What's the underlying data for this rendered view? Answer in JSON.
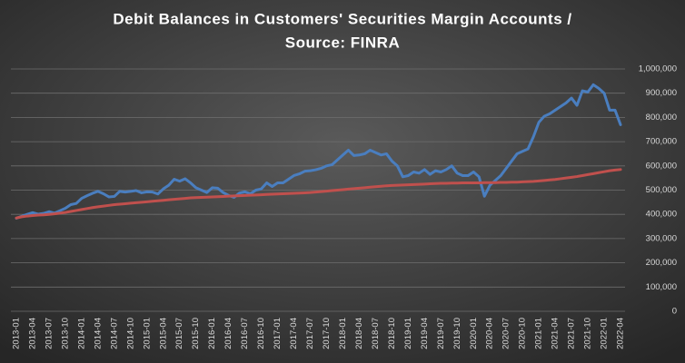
{
  "chart_data": {
    "type": "line",
    "title": [
      "Debit Balances in Customers' Securities Margin Accounts /",
      "Source: FINRA"
    ],
    "categories": [
      "2013-01",
      null,
      null,
      "2013-04",
      null,
      null,
      "2013-07",
      null,
      null,
      "2013-10",
      null,
      null,
      "2014-01",
      null,
      null,
      "2014-04",
      null,
      null,
      "2014-07",
      null,
      null,
      "2014-10",
      null,
      null,
      "2015-01",
      null,
      null,
      "2015-04",
      null,
      null,
      "2015-07",
      null,
      null,
      "2015-10",
      null,
      null,
      "2016-01",
      null,
      null,
      "2016-04",
      null,
      null,
      "2016-07",
      null,
      null,
      "2016-10",
      null,
      null,
      "2017-01",
      null,
      null,
      "2017-04",
      null,
      null,
      "2017-07",
      null,
      null,
      "2017-10",
      null,
      null,
      "2018-01",
      null,
      null,
      "2018-04",
      null,
      null,
      "2018-07",
      null,
      null,
      "2018-10",
      null,
      null,
      "2019-01",
      null,
      null,
      "2019-04",
      null,
      null,
      "2019-07",
      null,
      null,
      "2019-10",
      null,
      null,
      "2020-01",
      null,
      null,
      "2020-04",
      null,
      null,
      "2020-07",
      null,
      null,
      "2020-10",
      null,
      null,
      "2021-01",
      null,
      null,
      "2021-04",
      null,
      null,
      "2021-07",
      null,
      null,
      "2021-10",
      null,
      null,
      "2022-01",
      null,
      null,
      "2022-04"
    ],
    "series": [
      {
        "color": "#4a7ebf",
        "values": [
          384000,
          392000,
          400000,
          407000,
          401000,
          404000,
          411000,
          405000,
          415000,
          425000,
          440000,
          445000,
          466000,
          477000,
          487000,
          495000,
          485000,
          472000,
          474000,
          495000,
          492000,
          495000,
          498000,
          489000,
          493000,
          492000,
          484000,
          505000,
          520000,
          545000,
          537000,
          547000,
          530000,
          510000,
          500000,
          490000,
          510000,
          508000,
          490000,
          478000,
          470000,
          488000,
          493000,
          485000,
          500000,
          505000,
          530000,
          515000,
          530000,
          530000,
          545000,
          560000,
          567000,
          578000,
          580000,
          584000,
          590000,
          600000,
          605000,
          625000,
          645000,
          665000,
          643000,
          645000,
          650000,
          665000,
          655000,
          645000,
          650000,
          620000,
          600000,
          555000,
          560000,
          575000,
          570000,
          585000,
          565000,
          580000,
          575000,
          585000,
          600000,
          570000,
          560000,
          560000,
          575000,
          555000,
          475000,
          520000,
          540000,
          560000,
          590000,
          620000,
          650000,
          660000,
          670000,
          720000,
          780000,
          805000,
          815000,
          830000,
          845000,
          860000,
          880000,
          850000,
          910000,
          905000,
          935000,
          920000,
          900000,
          830000,
          830000,
          770000
        ]
      },
      {
        "color": "#c0504d",
        "values": [
          385000,
          390000,
          393000,
          395000,
          397000,
          398000,
          400000,
          402000,
          405000,
          408000,
          412000,
          416000,
          420000,
          424000,
          428000,
          431000,
          434000,
          437000,
          440000,
          442000,
          444000,
          446000,
          448000,
          450000,
          452000,
          454000,
          456000,
          458000,
          460000,
          462000,
          464000,
          466000,
          468000,
          469000,
          470000,
          471000,
          472000,
          473000,
          474000,
          475000,
          476000,
          477000,
          478000,
          479000,
          480000,
          481000,
          482000,
          483000,
          484000,
          485000,
          486000,
          487000,
          488000,
          489000,
          490000,
          492000,
          494000,
          496000,
          498000,
          500000,
          502000,
          504000,
          506000,
          508000,
          510000,
          512000,
          514000,
          516000,
          518000,
          519000,
          520000,
          521000,
          522000,
          523000,
          524000,
          525000,
          526000,
          527000,
          528000,
          528000,
          529000,
          529000,
          530000,
          530000,
          530000,
          530000,
          531000,
          531000,
          531000,
          532000,
          532000,
          533000,
          533000,
          534000,
          535000,
          536000,
          538000,
          540000,
          542000,
          544000,
          547000,
          550000,
          553000,
          556000,
          560000,
          564000,
          568000,
          572000,
          576000,
          580000,
          583000,
          585000
        ]
      }
    ],
    "ylim": [
      0,
      1000000
    ],
    "yticks": [
      0,
      {
        "value": 100000,
        "label": "100,000"
      },
      {
        "value": 200000,
        "label": "200,000"
      },
      {
        "value": 300000,
        "label": "300,000"
      },
      {
        "value": 400000,
        "label": "400,000"
      },
      {
        "value": 500000,
        "label": "500,000"
      },
      {
        "value": 600000,
        "label": "600,000"
      },
      {
        "value": 700000,
        "label": "700,000"
      },
      {
        "value": 800000,
        "label": "800,000"
      },
      {
        "value": 900000,
        "label": "900,000"
      },
      {
        "value": 1000000,
        "label": "1,000,000"
      }
    ],
    "grid": true
  }
}
